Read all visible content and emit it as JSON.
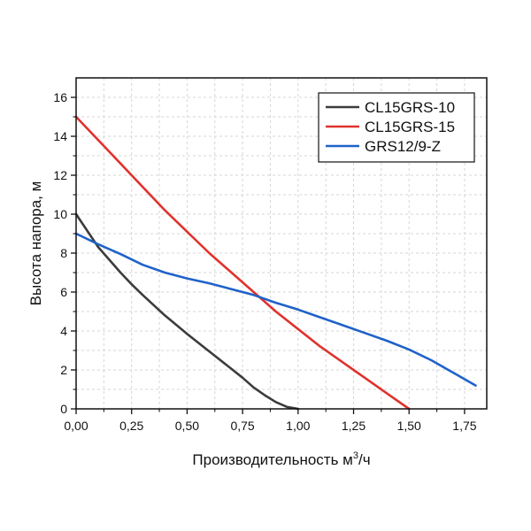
{
  "chart_data": {
    "type": "line",
    "title": "",
    "xlabel": "Производительность м",
    "xlabel_sup": "3",
    "xlabel_tail": "/ч",
    "ylabel": "Высота напора, м",
    "xlim": [
      0,
      1.85
    ],
    "ylim": [
      0,
      17
    ],
    "grid": true,
    "legend_position": "top-right",
    "x_ticks": [
      0,
      0.25,
      0.5,
      0.75,
      1.0,
      1.25,
      1.5,
      1.75
    ],
    "x_tick_labels": [
      "0,00",
      "0,25",
      "0,50",
      "0,75",
      "1,00",
      "1,25",
      "1,50",
      "1,75"
    ],
    "y_ticks": [
      0,
      2,
      4,
      6,
      8,
      10,
      12,
      14,
      16
    ],
    "y_tick_labels": [
      "0",
      "2",
      "4",
      "6",
      "8",
      "10",
      "12",
      "14",
      "16"
    ],
    "series": [
      {
        "name": "CL15GRS-10",
        "color": "#3c3c3c",
        "x": [
          0,
          0.1,
          0.2,
          0.25,
          0.3,
          0.4,
          0.5,
          0.6,
          0.7,
          0.75,
          0.8,
          0.85,
          0.9,
          0.95,
          1.0
        ],
        "y": [
          10,
          8.3,
          7.0,
          6.4,
          5.85,
          4.8,
          3.85,
          2.95,
          2.05,
          1.6,
          1.1,
          0.7,
          0.35,
          0.1,
          0
        ]
      },
      {
        "name": "CL15GRS-15",
        "color": "#e0322d",
        "x": [
          0,
          0.1,
          0.2,
          0.25,
          0.3,
          0.4,
          0.5,
          0.6,
          0.7,
          0.75,
          0.8,
          0.85,
          0.9,
          1.0,
          1.1,
          1.2,
          1.25,
          1.3,
          1.4,
          1.5
        ],
        "y": [
          15,
          13.8,
          12.6,
          12.0,
          11.4,
          10.2,
          9.1,
          8.0,
          7.0,
          6.5,
          6.0,
          5.5,
          5.0,
          4.1,
          3.2,
          2.4,
          2.0,
          1.6,
          0.8,
          0
        ]
      },
      {
        "name": "GRS12/9-Z",
        "color": "#1f62c8",
        "x": [
          0,
          0.1,
          0.2,
          0.3,
          0.4,
          0.5,
          0.6,
          0.7,
          0.8,
          0.9,
          1.0,
          1.1,
          1.2,
          1.3,
          1.4,
          1.5,
          1.6,
          1.7,
          1.8
        ],
        "y": [
          9.0,
          8.45,
          7.95,
          7.4,
          7.0,
          6.7,
          6.45,
          6.15,
          5.85,
          5.45,
          5.1,
          4.7,
          4.3,
          3.9,
          3.5,
          3.05,
          2.5,
          1.85,
          1.2
        ]
      }
    ]
  }
}
